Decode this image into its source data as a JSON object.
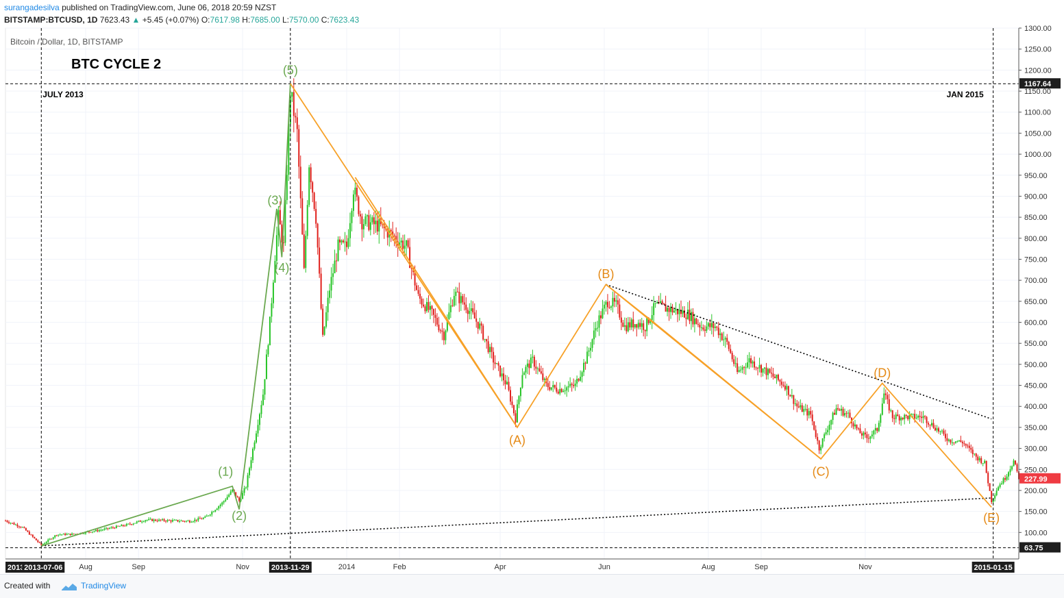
{
  "header": {
    "author": "surangadesilva",
    "published": "published on TradingView.com, June 06, 2018 20:59 NZST",
    "symbol": "BITSTAMP:BTCUSD, 1D",
    "last": "7623.43",
    "change": "+5.45 (+0.07%)",
    "o_label": "O:",
    "o_value": "7617.98",
    "h_label": "H:",
    "h_value": "7685.00",
    "l_label": "L:",
    "l_value": "7570.00",
    "c_label": "C:",
    "c_value": "7623.43"
  },
  "footer": {
    "created_with": "Created with",
    "brand": "TradingView"
  },
  "chart_data": {
    "type": "line",
    "title": "BTC CYCLE 2",
    "subtitle": "Bitcoin / Dollar, 1D, BITSTAMP",
    "x_range": [
      "2013-06-15",
      "2015-01-30"
    ],
    "ylim": [
      50,
      1300
    ],
    "y_ticks": [
      100,
      150,
      200,
      250,
      300,
      350,
      400,
      450,
      500,
      550,
      600,
      650,
      700,
      750,
      800,
      850,
      900,
      950,
      1000,
      1050,
      1100,
      1150,
      1200,
      1250,
      1300
    ],
    "x_ticks": [
      {
        "label": "Aug",
        "x": "2013-08-01"
      },
      {
        "label": "Sep",
        "x": "2013-09-01"
      },
      {
        "label": "Nov",
        "x": "2013-11-01"
      },
      {
        "label": "2014",
        "x": "2014-01-01"
      },
      {
        "label": "Feb",
        "x": "2014-02-01"
      },
      {
        "label": "Apr",
        "x": "2014-04-01"
      },
      {
        "label": "Jun",
        "x": "2014-06-01"
      },
      {
        "label": "Aug",
        "x": "2014-08-01"
      },
      {
        "label": "Sep",
        "x": "2014-09-01"
      },
      {
        "label": "Nov",
        "x": "2014-11-01"
      }
    ],
    "x_markers": [
      {
        "label": "2013-04-10",
        "x": "2013-06-15"
      },
      {
        "label": "2013-07-06",
        "x": "2013-07-06"
      },
      {
        "label": "2013-11-29",
        "x": "2013-11-29"
      },
      {
        "label": "2015-01-15",
        "x": "2015-01-15"
      }
    ],
    "h_markers": [
      {
        "label": "1167.64",
        "y": 1167.64,
        "bg": "#1e1e1e"
      },
      {
        "label": "63.75",
        "y": 63.75,
        "bg": "#1e1e1e"
      },
      {
        "label": "227.99",
        "y": 227.99,
        "bg": "#ef3b42"
      }
    ],
    "price_path": [
      [
        "2013-06-15",
        128
      ],
      [
        "2013-06-25",
        112
      ],
      [
        "2013-07-06",
        70
      ],
      [
        "2013-07-15",
        95
      ],
      [
        "2013-07-25",
        96
      ],
      [
        "2013-08-10",
        106
      ],
      [
        "2013-08-25",
        118
      ],
      [
        "2013-09-05",
        130
      ],
      [
        "2013-09-20",
        128
      ],
      [
        "2013-10-01",
        127
      ],
      [
        "2013-10-10",
        135
      ],
      [
        "2013-10-20",
        170
      ],
      [
        "2013-10-26",
        200
      ],
      [
        "2013-10-30",
        175
      ],
      [
        "2013-11-03",
        210
      ],
      [
        "2013-11-08",
        320
      ],
      [
        "2013-11-13",
        430
      ],
      [
        "2013-11-17",
        600
      ],
      [
        "2013-11-20",
        760
      ],
      [
        "2013-11-22",
        850
      ],
      [
        "2013-11-25",
        780
      ],
      [
        "2013-11-29",
        1150
      ],
      [
        "2013-12-03",
        1050
      ],
      [
        "2013-12-07",
        720
      ],
      [
        "2013-12-10",
        980
      ],
      [
        "2013-12-14",
        850
      ],
      [
        "2013-12-18",
        560
      ],
      [
        "2013-12-22",
        680
      ],
      [
        "2013-12-27",
        780
      ],
      [
        "2014-01-01",
        780
      ],
      [
        "2014-01-05",
        920
      ],
      [
        "2014-01-10",
        840
      ],
      [
        "2014-01-20",
        830
      ],
      [
        "2014-01-30",
        800
      ],
      [
        "2014-02-05",
        780
      ],
      [
        "2014-02-12",
        660
      ],
      [
        "2014-02-20",
        620
      ],
      [
        "2014-02-27",
        570
      ],
      [
        "2014-03-05",
        670
      ],
      [
        "2014-03-12",
        640
      ],
      [
        "2014-03-20",
        590
      ],
      [
        "2014-03-28",
        510
      ],
      [
        "2014-04-05",
        450
      ],
      [
        "2014-04-10",
        370
      ],
      [
        "2014-04-14",
        480
      ],
      [
        "2014-04-20",
        510
      ],
      [
        "2014-04-28",
        450
      ],
      [
        "2014-05-05",
        440
      ],
      [
        "2014-05-15",
        450
      ],
      [
        "2014-05-22",
        520
      ],
      [
        "2014-05-28",
        600
      ],
      [
        "2014-06-03",
        650
      ],
      [
        "2014-06-08",
        640
      ],
      [
        "2014-06-13",
        590
      ],
      [
        "2014-06-20",
        600
      ],
      [
        "2014-06-25",
        590
      ],
      [
        "2014-07-01",
        640
      ],
      [
        "2014-07-10",
        630
      ],
      [
        "2014-07-20",
        620
      ],
      [
        "2014-07-28",
        590
      ],
      [
        "2014-08-05",
        590
      ],
      [
        "2014-08-12",
        550
      ],
      [
        "2014-08-18",
        480
      ],
      [
        "2014-08-25",
        510
      ],
      [
        "2014-09-05",
        480
      ],
      [
        "2014-09-15",
        450
      ],
      [
        "2014-09-22",
        400
      ],
      [
        "2014-09-30",
        380
      ],
      [
        "2014-10-05",
        300
      ],
      [
        "2014-10-10",
        350
      ],
      [
        "2014-10-15",
        395
      ],
      [
        "2014-10-22",
        380
      ],
      [
        "2014-10-28",
        340
      ],
      [
        "2014-11-02",
        325
      ],
      [
        "2014-11-08",
        345
      ],
      [
        "2014-11-12",
        430
      ],
      [
        "2014-11-17",
        375
      ],
      [
        "2014-11-25",
        375
      ],
      [
        "2014-12-05",
        375
      ],
      [
        "2014-12-12",
        350
      ],
      [
        "2014-12-20",
        320
      ],
      [
        "2014-12-28",
        315
      ],
      [
        "2015-01-05",
        280
      ],
      [
        "2015-01-10",
        265
      ],
      [
        "2015-01-14",
        175
      ],
      [
        "2015-01-18",
        210
      ],
      [
        "2015-01-22",
        230
      ],
      [
        "2015-01-27",
        270
      ],
      [
        "2015-01-30",
        230
      ]
    ],
    "green_line": {
      "color": "#6aa84f",
      "points": [
        [
          "2013-07-06",
          68
        ],
        [
          "2013-10-26",
          210
        ],
        [
          "2013-10-30",
          155
        ],
        [
          "2013-11-21",
          870
        ],
        [
          "2013-11-24",
          755
        ],
        [
          "2013-11-29",
          1168
        ]
      ]
    },
    "orange_line": {
      "color": "#f7a128",
      "points": [
        [
          "2013-11-29",
          1168
        ],
        [
          "2014-04-11",
          350
        ],
        [
          "2014-06-02",
          690
        ],
        [
          "2014-10-06",
          275
        ],
        [
          "2014-11-11",
          455
        ],
        [
          "2015-01-14",
          160
        ]
      ]
    },
    "orange_line_2": {
      "color": "#f7a128",
      "points": [
        [
          "2014-01-06",
          945
        ],
        [
          "2014-04-11",
          350
        ]
      ]
    },
    "orange_line_3": {
      "color": "#f7a128",
      "points": [
        [
          "2014-06-02",
          690
        ],
        [
          "2014-06-30",
          600
        ],
        [
          "2014-10-06",
          275
        ]
      ]
    },
    "trend_lines": [
      {
        "points": [
          [
            "2013-07-06",
            68
          ],
          [
            "2015-01-14",
            182
          ]
        ],
        "color": "#000000",
        "dash": "2,3"
      },
      {
        "points": [
          [
            "2014-06-02",
            690
          ],
          [
            "2015-01-14",
            370
          ]
        ],
        "color": "#000000",
        "dash": "2,3"
      }
    ],
    "wave_labels": [
      {
        "text": "(1)",
        "x": "2013-10-22",
        "y": 235,
        "color": "#6aa84f"
      },
      {
        "text": "(2)",
        "x": "2013-10-30",
        "y": 130,
        "color": "#6aa84f"
      },
      {
        "text": "(3)",
        "x": "2013-11-20",
        "y": 880,
        "color": "#6aa84f"
      },
      {
        "text": "(4)",
        "x": "2013-11-24",
        "y": 720,
        "color": "#6aa84f"
      },
      {
        "text": "(5)",
        "x": "2013-11-29",
        "y": 1190,
        "color": "#6aa84f"
      },
      {
        "text": "(A)",
        "x": "2014-04-11",
        "y": 310,
        "color": "#e58a16"
      },
      {
        "text": "(B)",
        "x": "2014-06-02",
        "y": 705,
        "color": "#e58a16"
      },
      {
        "text": "(C)",
        "x": "2014-10-06",
        "y": 235,
        "color": "#e58a16"
      },
      {
        "text": "(D)",
        "x": "2014-11-11",
        "y": 470,
        "color": "#e58a16"
      },
      {
        "text": "(E)",
        "x": "2015-01-14",
        "y": 125,
        "color": "#e58a16"
      }
    ],
    "annotations": [
      {
        "text": "JULY 2013",
        "x": "2013-07-06",
        "y": 1135
      },
      {
        "text": "JAN 2015",
        "x": "2015-01-15",
        "y": 1135
      }
    ],
    "up_color": "#26c426",
    "down_color": "#e0201c"
  }
}
